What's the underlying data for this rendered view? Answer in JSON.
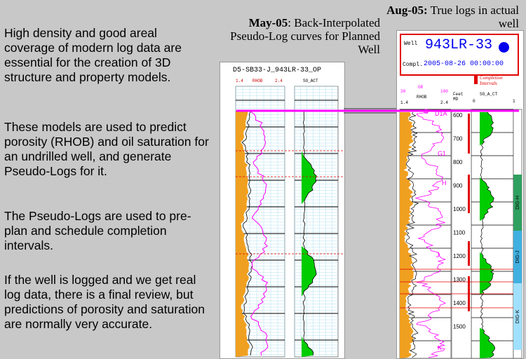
{
  "text": {
    "paragraphs": [
      "High density and good areal coverage of modern log data are essential for the creation of 3D structure and property models.",
      "These models are used to predict porosity (RHOB) and oil saturation for an undrilled well, and generate Pseudo-Logs for it.",
      "The Pseudo-Logs are used to pre-plan and schedule completion intervals.",
      "If the well is logged and we get real log data, there is a final review, but predictions of porosity and saturation are normally very accurate."
    ]
  },
  "captions": {
    "left_date": "May-05",
    "left_rest": ": Back-Interpolated Pseudo-Log curves for Planned Well",
    "right_date": "Aug-05:",
    "right_rest": " True logs in actual well"
  },
  "left_panel": {
    "title": "D5-SB33-J_943LR-33_OP",
    "track1_left": "1.4",
    "track1_name": "RHOB",
    "track1_right": "2.4",
    "track2_name": "SO_ACT",
    "horizons": [
      "G",
      "G1",
      "H",
      "J"
    ]
  },
  "right_panel": {
    "well_label": "Well",
    "well_name": "943LR-33",
    "compl_label": "Compl.",
    "compl_date": "2005-08-26 00:00:00",
    "legend_label": "Completion Intervals",
    "gr_label": "GR",
    "gr_left": "30",
    "gr_right": "100",
    "rhob_label": "RHOB",
    "rhob_left": "1.4",
    "rhob_right": "2.4",
    "depth_label": "Feet MD",
    "so_label": "SO_A_CT",
    "so_left": "0",
    "so_right": "1",
    "depths": [
      "600",
      "700",
      "800",
      "900",
      "1000",
      "1100",
      "1200",
      "1300",
      "1400",
      "1500"
    ],
    "markers": [
      "G",
      "D1A",
      "G1",
      "H",
      "J",
      "K"
    ],
    "zones": [
      "DIG-H",
      "DIG-J",
      "DIG-K"
    ],
    "colors": {
      "header_border": "#e00000",
      "badge": "#0000ee",
      "pink": "#ff00ff",
      "fill_orange": "#f0a020",
      "fill_green": "#00cc00"
    }
  },
  "connector_color": "#ff00ff"
}
